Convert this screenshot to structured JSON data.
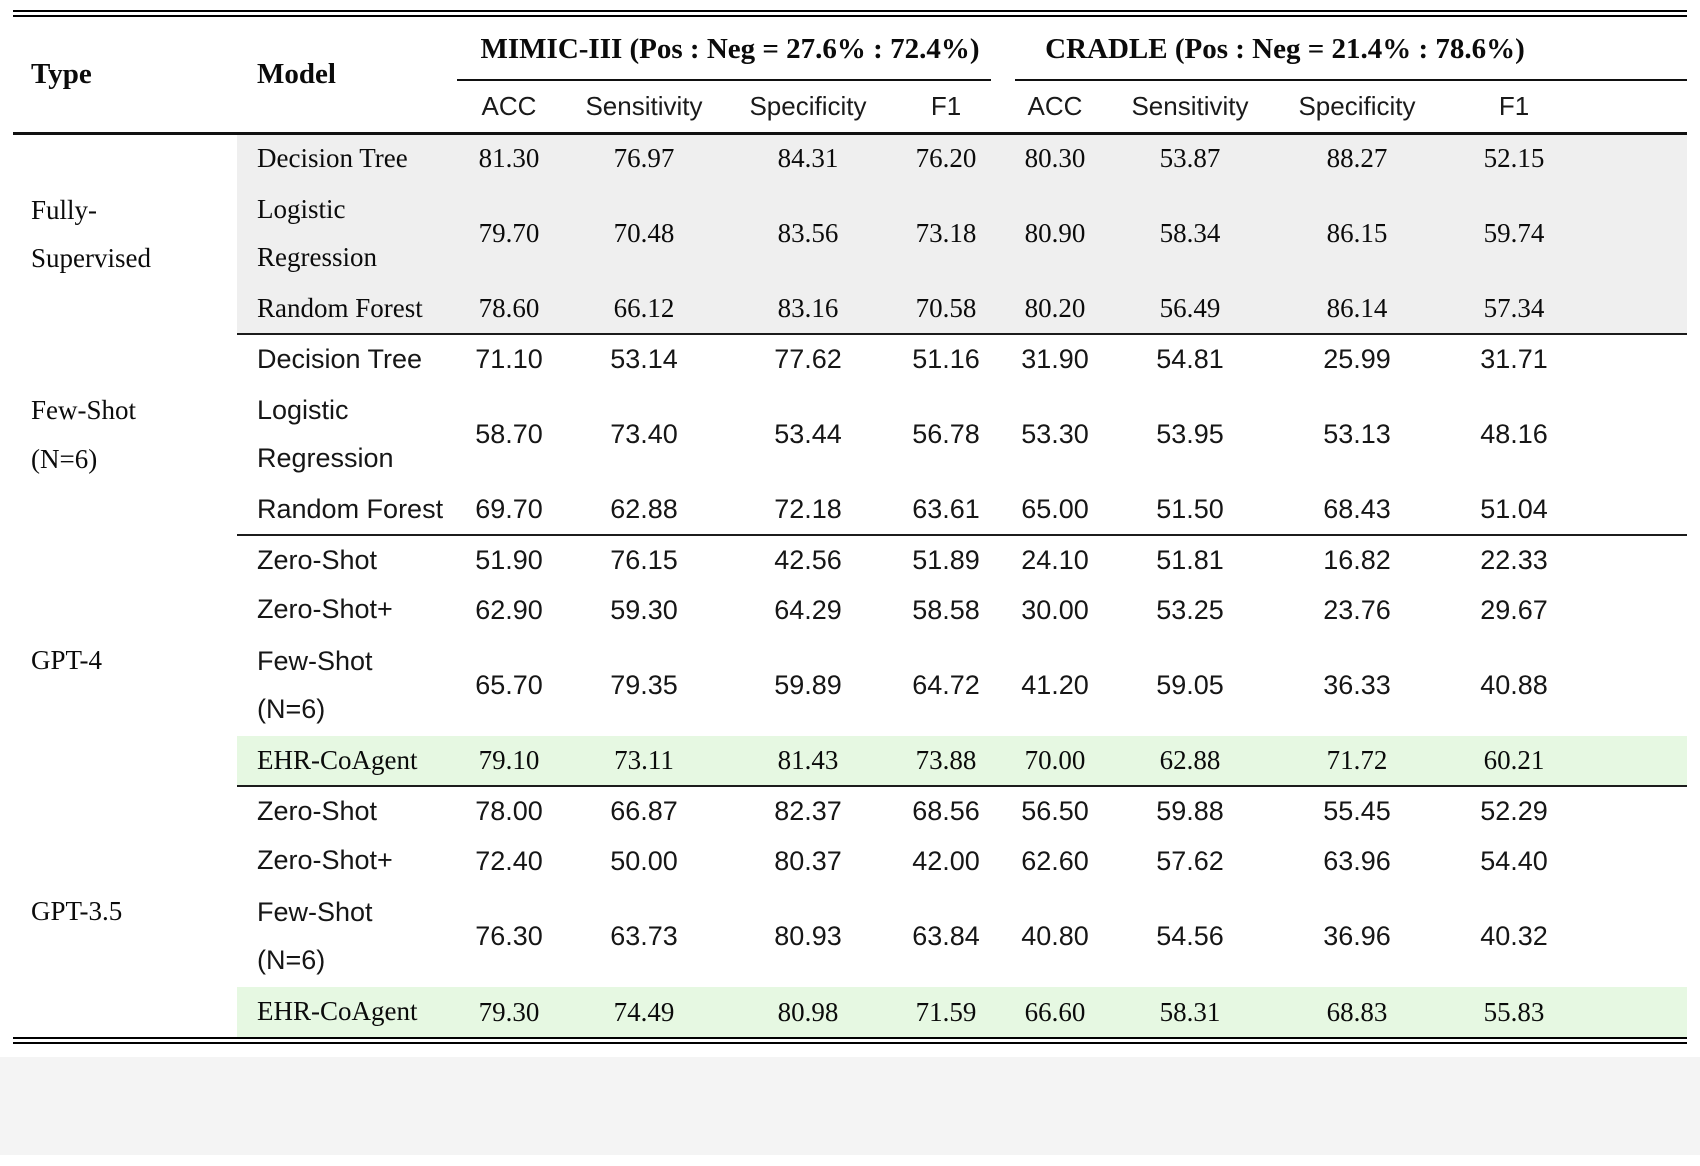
{
  "table": {
    "header": {
      "type_label": "Type",
      "model_label": "Model",
      "group1_label": "MIMIC-III (Pos : Neg = 27.6% : 72.4%)",
      "group2_label": "CRADLE (Pos : Neg = 21.4% : 78.6%)",
      "metrics": [
        "ACC",
        "Sensitivity",
        "Specificity",
        "F1"
      ]
    },
    "colors": {
      "section_gray": "#efefef",
      "highlight_green": "#e6f8e2",
      "footer_strip": "#f4f4f4"
    },
    "sections": [
      {
        "type": "Fully-\nSupervised",
        "rows": [
          {
            "model": "Decision Tree",
            "values": [
              "81.30",
              "76.97",
              "84.31",
              "76.20",
              "80.30",
              "53.87",
              "88.27",
              "52.15"
            ]
          },
          {
            "model": "Logistic\nRegression",
            "values": [
              "79.70",
              "70.48",
              "83.56",
              "73.18",
              "80.90",
              "58.34",
              "86.15",
              "59.74"
            ]
          },
          {
            "model": "Random Forest",
            "values": [
              "78.60",
              "66.12",
              "83.16",
              "70.58",
              "80.20",
              "56.49",
              "86.14",
              "57.34"
            ]
          }
        ]
      },
      {
        "type": "Few-Shot\n(N=6)",
        "rows": [
          {
            "model": "Decision Tree",
            "values": [
              "71.10",
              "53.14",
              "77.62",
              "51.16",
              "31.90",
              "54.81",
              "25.99",
              "31.71"
            ]
          },
          {
            "model": "Logistic\nRegression",
            "values": [
              "58.70",
              "73.40",
              "53.44",
              "56.78",
              "53.30",
              "53.95",
              "53.13",
              "48.16"
            ]
          },
          {
            "model": "Random Forest",
            "values": [
              "69.70",
              "62.88",
              "72.18",
              "63.61",
              "65.00",
              "51.50",
              "68.43",
              "51.04"
            ]
          }
        ]
      },
      {
        "type": "GPT-4",
        "rows": [
          {
            "model": "Zero-Shot",
            "values": [
              "51.90",
              "76.15",
              "42.56",
              "51.89",
              "24.10",
              "51.81",
              "16.82",
              "22.33"
            ]
          },
          {
            "model": "Zero-Shot+",
            "values": [
              "62.90",
              "59.30",
              "64.29",
              "58.58",
              "30.00",
              "53.25",
              "23.76",
              "29.67"
            ]
          },
          {
            "model": "Few-Shot\n(N=6)",
            "values": [
              "65.70",
              "79.35",
              "59.89",
              "64.72",
              "41.20",
              "59.05",
              "36.33",
              "40.88"
            ]
          },
          {
            "model": "EHR-CoAgent",
            "values": [
              "79.10",
              "73.11",
              "81.43",
              "73.88",
              "70.00",
              "62.88",
              "71.72",
              "60.21"
            ]
          }
        ]
      },
      {
        "type": "GPT-3.5",
        "rows": [
          {
            "model": "Zero-Shot",
            "values": [
              "78.00",
              "66.87",
              "82.37",
              "68.56",
              "56.50",
              "59.88",
              "55.45",
              "52.29"
            ]
          },
          {
            "model": "Zero-Shot+",
            "values": [
              "72.40",
              "50.00",
              "80.37",
              "42.00",
              "62.60",
              "57.62",
              "63.96",
              "54.40"
            ]
          },
          {
            "model": "Few-Shot\n(N=6)",
            "values": [
              "76.30",
              "63.73",
              "80.93",
              "63.84",
              "40.80",
              "54.56",
              "36.96",
              "40.32"
            ]
          },
          {
            "model": "EHR-CoAgent",
            "values": [
              "79.30",
              "74.49",
              "80.98",
              "71.59",
              "66.60",
              "58.31",
              "68.83",
              "55.83"
            ]
          }
        ]
      }
    ]
  }
}
